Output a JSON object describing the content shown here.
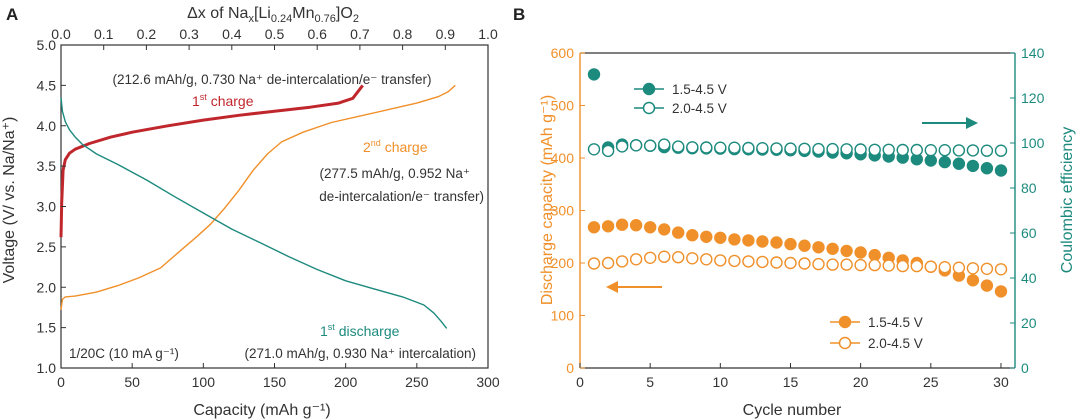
{
  "colors": {
    "red": "#c0272d",
    "orange": "#f0902a",
    "teal": "#1d8a7e",
    "axis": "#333333",
    "text": "#333333"
  },
  "chart_data": [
    {
      "panel_label": "A",
      "type": "line",
      "xlabel": "Capacity (mAh g⁻¹)",
      "ylabel": "Voltage (V/ vs. Na/Na⁺)",
      "top_xlabel": "Δx of Nax[Li0.24Mn0.76]O2",
      "xlim": [
        0,
        300
      ],
      "ylim": [
        1.0,
        5.0
      ],
      "top_xlim": [
        0.0,
        1.0
      ],
      "xticks": [
        "0",
        "50",
        "100",
        "150",
        "200",
        "250",
        "300"
      ],
      "yticks": [
        "1.0",
        "1.5",
        "2.0",
        "2.5",
        "3.0",
        "3.5",
        "4.0",
        "4.5",
        "5.0"
      ],
      "top_xticks": [
        "0.0",
        "0.1",
        "0.2",
        "0.3",
        "0.4",
        "0.5",
        "0.6",
        "0.7",
        "0.8",
        "0.9",
        "1.0"
      ],
      "series": [
        {
          "name": "1st charge",
          "color_key": "red",
          "x": [
            0,
            0.5,
            1.5,
            3,
            6,
            10,
            20,
            35,
            50,
            75,
            100,
            125,
            150,
            175,
            195,
            205,
            212
          ],
          "y": [
            2.62,
            3.05,
            3.45,
            3.58,
            3.66,
            3.71,
            3.78,
            3.86,
            3.92,
            4.0,
            4.07,
            4.13,
            4.18,
            4.23,
            4.28,
            4.34,
            4.5
          ]
        },
        {
          "name": "2nd charge",
          "color_key": "orange",
          "x": [
            0,
            1,
            3,
            10,
            25,
            40,
            55,
            70,
            85,
            95,
            105,
            115,
            125,
            135,
            145,
            155,
            170,
            190,
            210,
            230,
            250,
            265,
            272,
            277
          ],
          "y": [
            1.72,
            1.85,
            1.88,
            1.89,
            1.94,
            2.02,
            2.12,
            2.24,
            2.47,
            2.62,
            2.78,
            2.98,
            3.2,
            3.45,
            3.65,
            3.8,
            3.92,
            4.04,
            4.12,
            4.2,
            4.28,
            4.36,
            4.42,
            4.5
          ]
        },
        {
          "name": "1st discharge",
          "color_key": "teal",
          "x": [
            0,
            1,
            3,
            6,
            10,
            15,
            25,
            40,
            60,
            80,
            100,
            120,
            140,
            160,
            180,
            200,
            220,
            240,
            255,
            262,
            267,
            271
          ],
          "y": [
            4.35,
            4.18,
            4.05,
            3.95,
            3.86,
            3.77,
            3.65,
            3.52,
            3.33,
            3.12,
            2.92,
            2.72,
            2.55,
            2.38,
            2.22,
            2.08,
            1.98,
            1.88,
            1.78,
            1.68,
            1.58,
            1.49
          ]
        }
      ],
      "annotations": {
        "ann1": "(212.6 mAh/g, 0.730 Na⁺ de-intercalation/e⁻ transfer)",
        "charge1_label_num": "1",
        "charge1_label_sup": "st",
        "charge1_label_text": " charge",
        "charge2_label_num": "2",
        "charge2_label_sup": "nd",
        "charge2_label_text": "  charge",
        "ann2_line1": "(277.5 mAh/g, 0.952 Na⁺",
        "ann2_line2": "de-intercalation/e⁻ transfer)",
        "discharge_label_num": "1",
        "discharge_label_sup": "st",
        "discharge_label_text": " discharge",
        "rate": "1/20C (10 mA g⁻¹)",
        "ann3": "(271.0 mAh/g, 0.930 Na⁺ intercalation)"
      }
    },
    {
      "panel_label": "B",
      "type": "scatter",
      "xlabel": "Cycle number",
      "ylabel_left": "Discharge capacity (mAh g⁻¹)",
      "ylabel_right": "Coulombic efficiency",
      "xlim": [
        0,
        31
      ],
      "ylim_left": [
        0,
        600
      ],
      "ylim_right": [
        0,
        140
      ],
      "xticks": [
        "0",
        "5",
        "10",
        "15",
        "20",
        "25",
        "30"
      ],
      "yticks_left": [
        "0",
        "100",
        "200",
        "300",
        "400",
        "500",
        "600"
      ],
      "yticks_right": [
        "0",
        "20",
        "40",
        "60",
        "80",
        "100",
        "120",
        "140"
      ],
      "cycles": [
        1,
        2,
        3,
        4,
        5,
        6,
        7,
        8,
        9,
        10,
        11,
        12,
        13,
        14,
        15,
        16,
        17,
        18,
        19,
        20,
        21,
        22,
        23,
        24,
        25,
        26,
        27,
        28,
        29,
        30
      ],
      "series": [
        {
          "name": "1.5-4.5 V",
          "axis": "right",
          "filled": true,
          "color_key": "teal",
          "values": [
            130.5,
            98,
            99.3,
            99,
            98.8,
            98.2,
            97.9,
            97.7,
            97.6,
            97.5,
            97.3,
            97.2,
            97.1,
            97,
            96.8,
            96.5,
            96.2,
            95.8,
            95.4,
            95,
            94.5,
            94,
            93.5,
            92.8,
            92.2,
            91.5,
            90.8,
            89.8,
            88.8,
            87.8
          ]
        },
        {
          "name": "2.0-4.5 V",
          "axis": "right",
          "filled": false,
          "color_key": "teal",
          "values": [
            97.2,
            96.5,
            98.5,
            99,
            98.8,
            99.3,
            98.4,
            98.1,
            98,
            97.9,
            97.9,
            97.8,
            97.7,
            97.6,
            97.5,
            97.4,
            97.3,
            97.3,
            97.2,
            97.1,
            97,
            97,
            96.9,
            96.9,
            96.8,
            96.8,
            96.7,
            96.7,
            96.6,
            96.6
          ]
        },
        {
          "name": "1.5-4.5 V",
          "axis": "left",
          "filled": true,
          "color_key": "orange",
          "values": [
            268,
            270,
            273,
            272,
            268,
            264,
            258,
            253,
            250,
            248,
            245,
            243,
            241,
            239,
            236,
            233,
            230,
            227,
            223,
            220,
            215,
            210,
            205,
            200,
            193,
            186,
            176,
            167,
            157,
            146
          ]
        },
        {
          "name": "2.0-4.5 V",
          "axis": "left",
          "filled": false,
          "color_key": "orange",
          "values": [
            199,
            200,
            203,
            207,
            210,
            212,
            211,
            209,
            207,
            205,
            204,
            203,
            202,
            201,
            200,
            199,
            198,
            197,
            197,
            196,
            196,
            195,
            194,
            194,
            193,
            192,
            191,
            190,
            189,
            188
          ]
        }
      ],
      "legend_top": [
        "1.5-4.5 V",
        "2.0-4.5 V"
      ],
      "legend_bottom": [
        "1.5-4.5 V",
        "2.0-4.5 V"
      ]
    }
  ]
}
